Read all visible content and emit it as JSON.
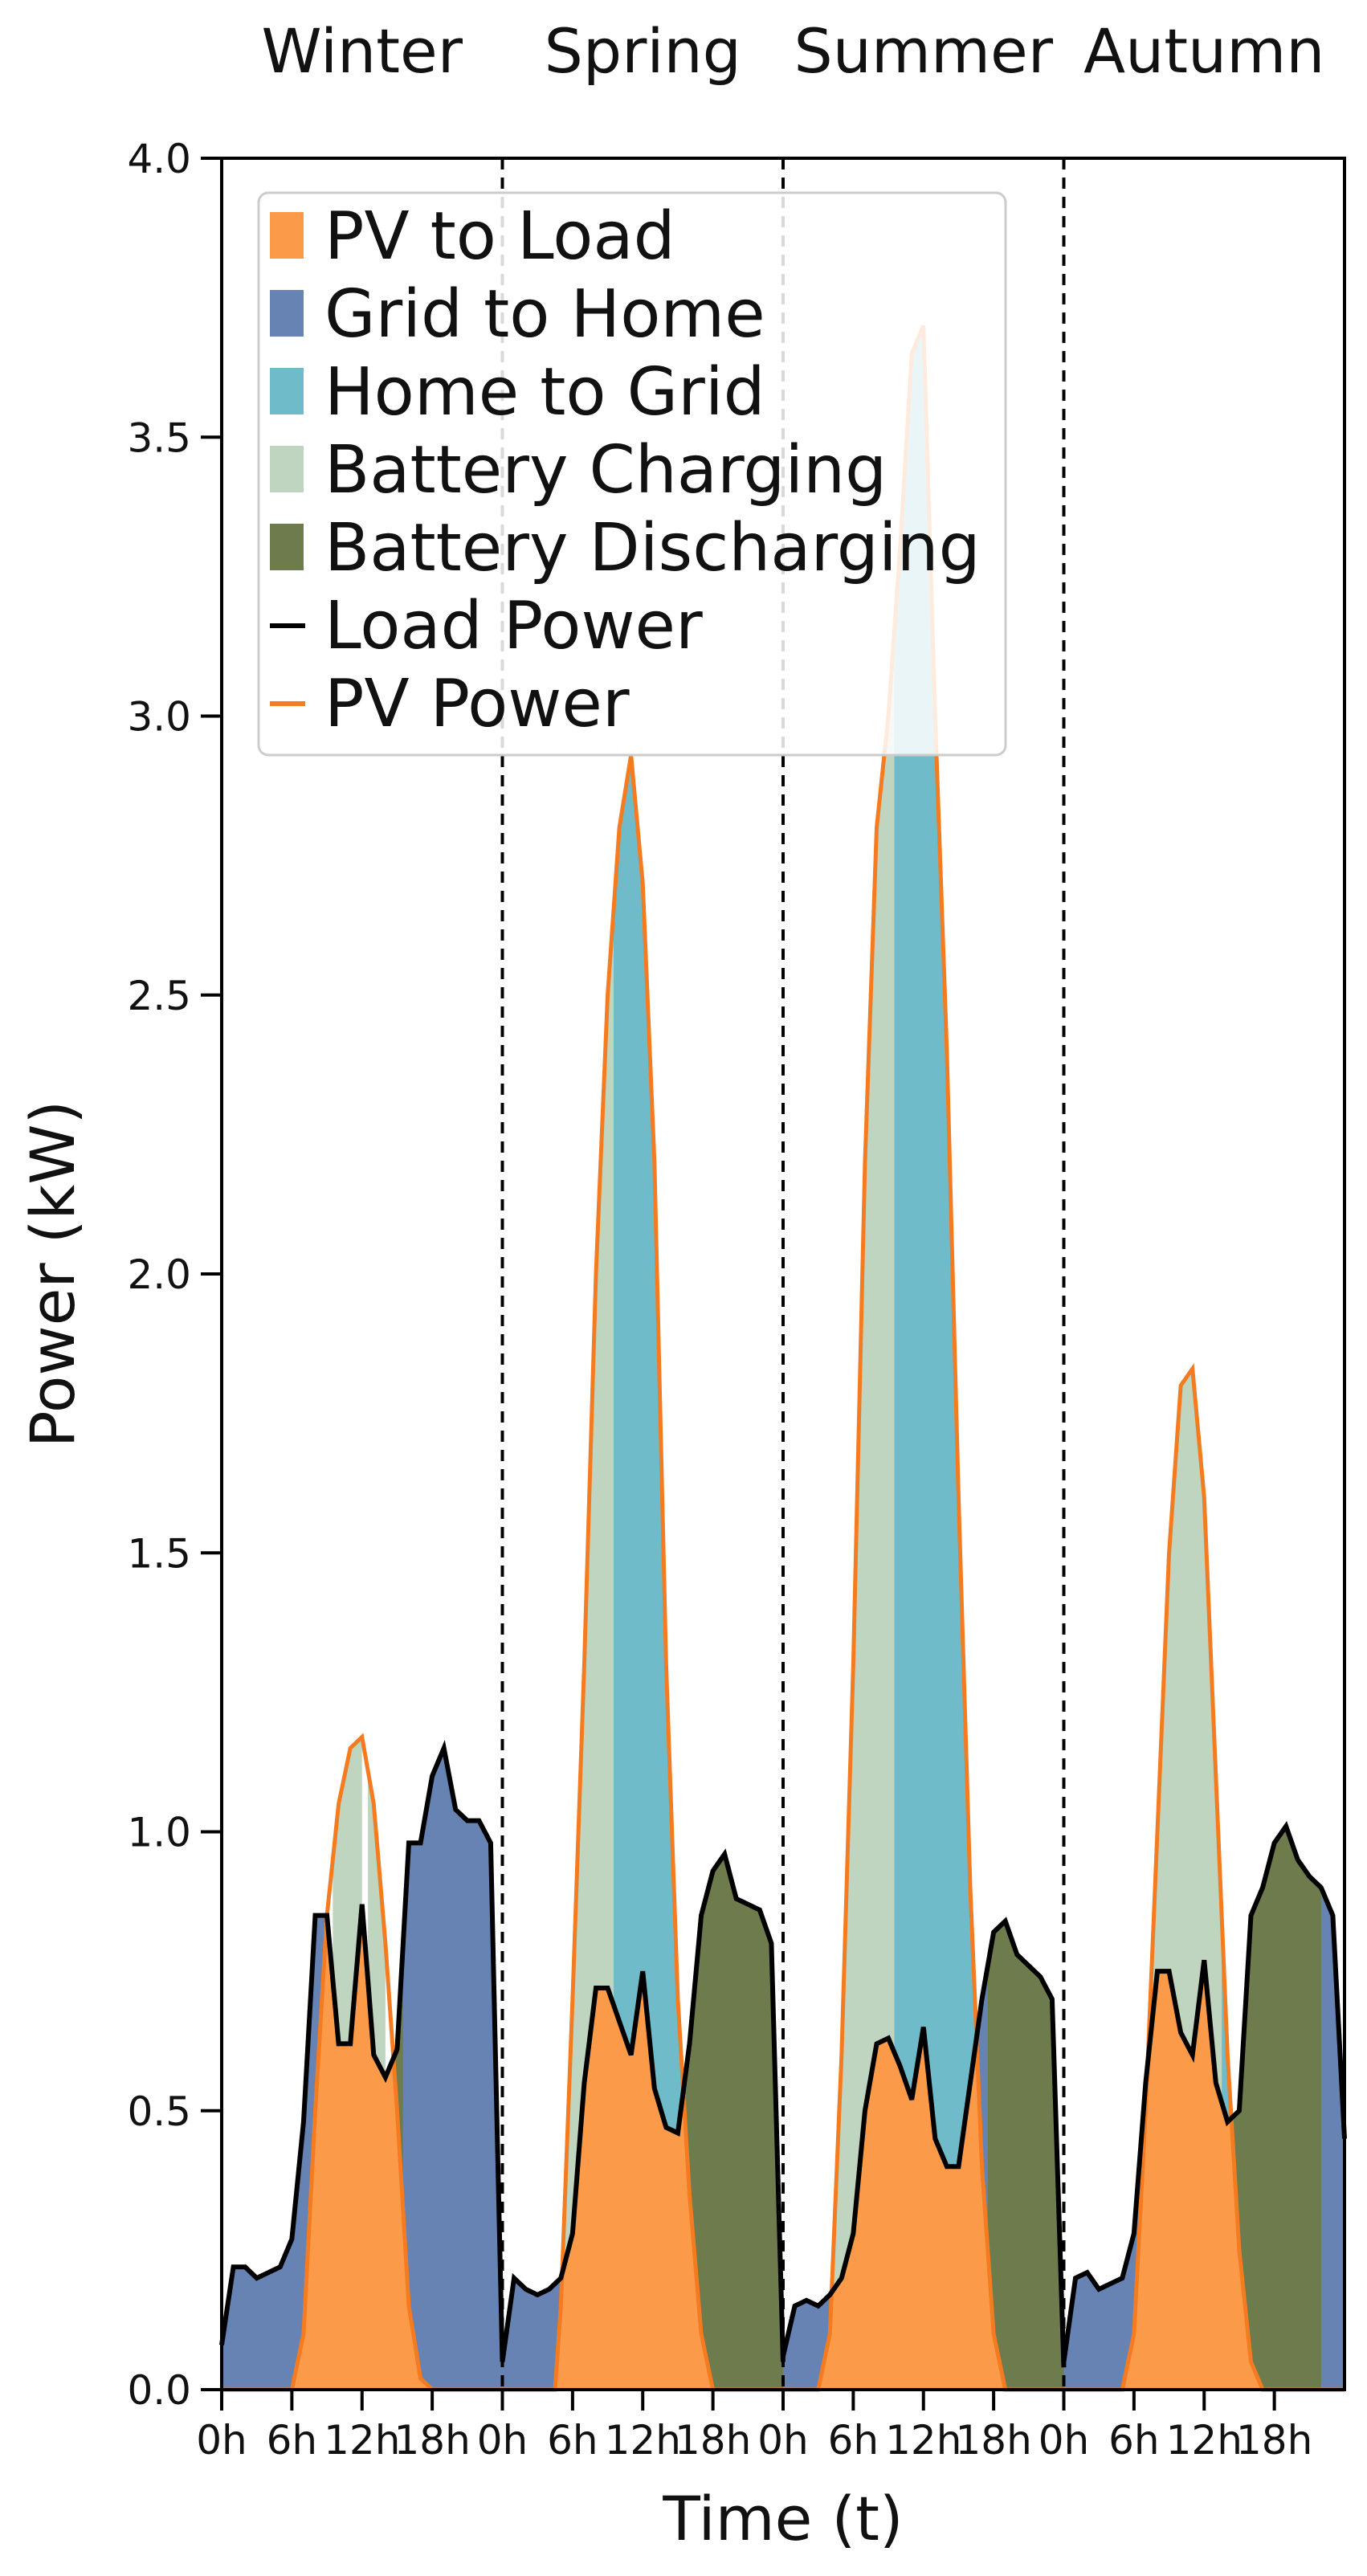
{
  "chart_data": {
    "type": "area",
    "ylabel": "Power (kW)",
    "xlabel": "Time (t)",
    "ylim": [
      0,
      4.0
    ],
    "yticks": [
      "0.0",
      "0.5",
      "1.0",
      "1.5",
      "2.0",
      "2.5",
      "3.0",
      "3.5",
      "4.0"
    ],
    "xtick_labels": [
      "0h",
      "6h",
      "12h",
      "18h"
    ],
    "grid": false,
    "legend_position": "top-left",
    "legend": [
      {
        "label": "PV to Load",
        "kind": "patch",
        "color": "#fb9a48"
      },
      {
        "label": "Grid to Home",
        "kind": "patch",
        "color": "#6683b3"
      },
      {
        "label": "Home to Grid",
        "kind": "patch",
        "color": "#6fbbc9"
      },
      {
        "label": "Battery Charging",
        "kind": "patch",
        "color": "#c0d5c0"
      },
      {
        "label": "Battery Discharging",
        "kind": "patch",
        "color": "#6e7b4c"
      },
      {
        "label": "Load Power",
        "kind": "line",
        "color": "#000000"
      },
      {
        "label": "PV Power",
        "kind": "line",
        "color": "#f47b20"
      }
    ],
    "seasons": [
      {
        "name": "Winter",
        "load": [
          [
            0,
            0.08
          ],
          [
            1,
            0.22
          ],
          [
            2,
            0.22
          ],
          [
            3,
            0.2
          ],
          [
            4,
            0.21
          ],
          [
            5,
            0.22
          ],
          [
            6,
            0.27
          ],
          [
            7,
            0.48
          ],
          [
            8,
            0.85
          ],
          [
            9,
            0.85
          ],
          [
            10,
            0.62
          ],
          [
            11,
            0.62
          ],
          [
            12,
            0.87
          ],
          [
            13,
            0.6
          ],
          [
            14,
            0.56
          ],
          [
            15,
            0.61
          ],
          [
            16,
            0.98
          ],
          [
            17,
            0.98
          ],
          [
            18,
            1.1
          ],
          [
            19,
            1.15
          ],
          [
            20,
            1.04
          ],
          [
            21,
            1.02
          ],
          [
            22,
            1.02
          ],
          [
            23,
            0.98
          ],
          [
            24,
            0.05
          ]
        ],
        "pv": [
          [
            0,
            0
          ],
          [
            6,
            0
          ],
          [
            7,
            0.1
          ],
          [
            8,
            0.5
          ],
          [
            9,
            0.85
          ],
          [
            10,
            1.05
          ],
          [
            11,
            1.15
          ],
          [
            12,
            1.17
          ],
          [
            13,
            1.05
          ],
          [
            14,
            0.8
          ],
          [
            15,
            0.5
          ],
          [
            16,
            0.15
          ],
          [
            17,
            0.02
          ],
          [
            18,
            0
          ],
          [
            24,
            0
          ]
        ],
        "charge": [
          [
            9.5,
            12
          ],
          [
            12.5,
            14
          ]
        ],
        "discharge": [
          [
            14,
            15.5
          ]
        ]
      },
      {
        "name": "Spring",
        "load": [
          [
            0,
            0.05
          ],
          [
            1,
            0.2
          ],
          [
            2,
            0.18
          ],
          [
            3,
            0.17
          ],
          [
            4,
            0.18
          ],
          [
            5,
            0.2
          ],
          [
            6,
            0.28
          ],
          [
            7,
            0.55
          ],
          [
            8,
            0.72
          ],
          [
            9,
            0.72
          ],
          [
            10,
            0.66
          ],
          [
            11,
            0.6
          ],
          [
            12,
            0.75
          ],
          [
            13,
            0.54
          ],
          [
            14,
            0.47
          ],
          [
            15,
            0.46
          ],
          [
            16,
            0.62
          ],
          [
            17,
            0.85
          ],
          [
            18,
            0.93
          ],
          [
            19,
            0.96
          ],
          [
            20,
            0.88
          ],
          [
            21,
            0.87
          ],
          [
            22,
            0.86
          ],
          [
            23,
            0.8
          ],
          [
            24,
            0.05
          ]
        ],
        "pv": [
          [
            0,
            0
          ],
          [
            4.5,
            0
          ],
          [
            5,
            0.15
          ],
          [
            6,
            0.7
          ],
          [
            7,
            1.3
          ],
          [
            8,
            2.0
          ],
          [
            9,
            2.5
          ],
          [
            10,
            2.8
          ],
          [
            11,
            2.93
          ],
          [
            12,
            2.7
          ],
          [
            13,
            2.2
          ],
          [
            14,
            1.3
          ],
          [
            15,
            0.7
          ],
          [
            16,
            0.35
          ],
          [
            17,
            0.1
          ],
          [
            18,
            0
          ],
          [
            24,
            0
          ]
        ],
        "charge": [
          [
            4,
            9.5
          ]
        ],
        "export": [
          [
            9.5,
            15.5
          ]
        ],
        "discharge": [
          [
            15.5,
            24
          ]
        ]
      },
      {
        "name": "Summer",
        "load": [
          [
            0,
            0.06
          ],
          [
            1,
            0.15
          ],
          [
            2,
            0.16
          ],
          [
            3,
            0.15
          ],
          [
            4,
            0.17
          ],
          [
            5,
            0.2
          ],
          [
            6,
            0.28
          ],
          [
            7,
            0.5
          ],
          [
            8,
            0.62
          ],
          [
            9,
            0.63
          ],
          [
            10,
            0.58
          ],
          [
            11,
            0.52
          ],
          [
            12,
            0.65
          ],
          [
            13,
            0.45
          ],
          [
            14,
            0.4
          ],
          [
            15,
            0.4
          ],
          [
            16,
            0.55
          ],
          [
            17,
            0.7
          ],
          [
            18,
            0.82
          ],
          [
            19,
            0.84
          ],
          [
            20,
            0.78
          ],
          [
            21,
            0.76
          ],
          [
            22,
            0.74
          ],
          [
            23,
            0.7
          ],
          [
            24,
            0.04
          ]
        ],
        "pv": [
          [
            0,
            0
          ],
          [
            3,
            0
          ],
          [
            4,
            0.1
          ],
          [
            5,
            0.6
          ],
          [
            6,
            1.3
          ],
          [
            7,
            2.2
          ],
          [
            8,
            2.8
          ],
          [
            9,
            3.0
          ],
          [
            10,
            3.3
          ],
          [
            11,
            3.65
          ],
          [
            12,
            3.7
          ],
          [
            13,
            3.0
          ],
          [
            14,
            2.4
          ],
          [
            15,
            1.6
          ],
          [
            16,
            0.9
          ],
          [
            17,
            0.4
          ],
          [
            18,
            0.1
          ],
          [
            19,
            0
          ],
          [
            24,
            0
          ]
        ],
        "charge": [
          [
            3.5,
            9.5
          ]
        ],
        "export": [
          [
            9.5,
            17.5
          ]
        ],
        "discharge": [
          [
            17.5,
            24
          ]
        ]
      },
      {
        "name": "Autumn",
        "load": [
          [
            0,
            0.05
          ],
          [
            1,
            0.2
          ],
          [
            2,
            0.21
          ],
          [
            3,
            0.18
          ],
          [
            4,
            0.19
          ],
          [
            5,
            0.2
          ],
          [
            6,
            0.28
          ],
          [
            7,
            0.55
          ],
          [
            8,
            0.75
          ],
          [
            9,
            0.75
          ],
          [
            10,
            0.64
          ],
          [
            11,
            0.6
          ],
          [
            12,
            0.77
          ],
          [
            13,
            0.55
          ],
          [
            14,
            0.48
          ],
          [
            15,
            0.5
          ],
          [
            16,
            0.85
          ],
          [
            17,
            0.9
          ],
          [
            18,
            0.98
          ],
          [
            19,
            1.01
          ],
          [
            20,
            0.95
          ],
          [
            21,
            0.92
          ],
          [
            22,
            0.9
          ],
          [
            23,
            0.85
          ],
          [
            24,
            0.45
          ]
        ],
        "pv": [
          [
            0,
            0
          ],
          [
            5,
            0
          ],
          [
            6,
            0.1
          ],
          [
            7,
            0.5
          ],
          [
            8,
            1.0
          ],
          [
            9,
            1.5
          ],
          [
            10,
            1.8
          ],
          [
            11,
            1.83
          ],
          [
            12,
            1.6
          ],
          [
            13,
            1.1
          ],
          [
            14,
            0.6
          ],
          [
            15,
            0.25
          ],
          [
            16,
            0.05
          ],
          [
            17,
            0
          ],
          [
            24,
            0
          ]
        ],
        "charge": [
          [
            5.5,
            13.5
          ]
        ],
        "export": [
          [
            13.5,
            14.5
          ]
        ],
        "discharge": [
          [
            14.5,
            22
          ]
        ]
      }
    ]
  }
}
